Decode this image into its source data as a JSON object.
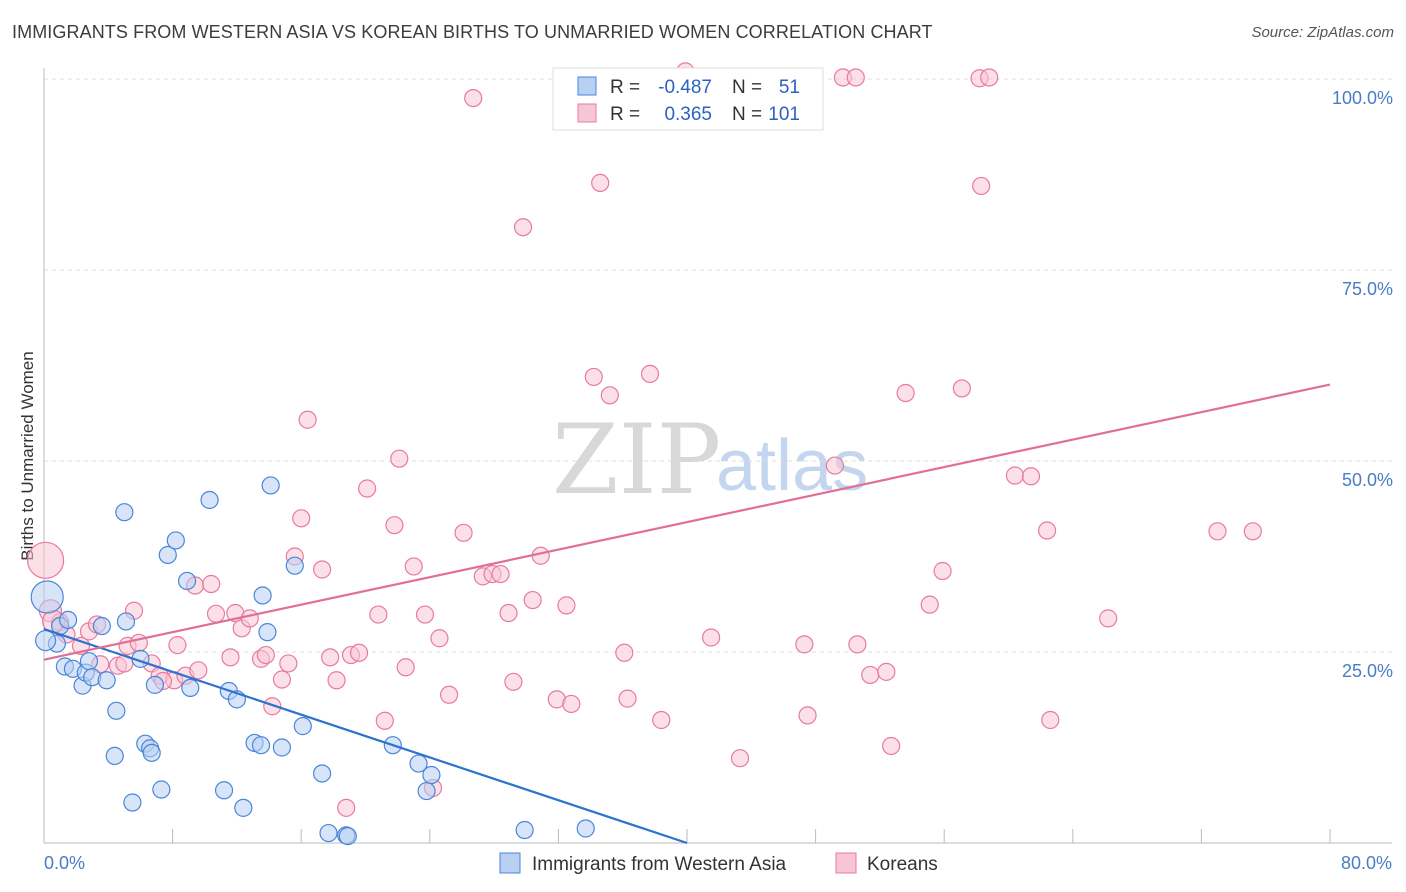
{
  "header": {
    "title": "IMMIGRANTS FROM WESTERN ASIA VS KOREAN BIRTHS TO UNMARRIED WOMEN CORRELATION CHART",
    "source": "Source: ZipAtlas.com"
  },
  "watermark": {
    "zip": "ZIP",
    "atlas": "atlas"
  },
  "colors": {
    "blue": "#4a86d8",
    "blue_fill": "#b8d0f2",
    "blue_line": "#2f72d0",
    "pink": "#e87aa0",
    "pink_fill": "#f7c6d6",
    "pink_line": "#e06f96",
    "grid": "#dddddd",
    "tick_text": "#4a7cc6"
  },
  "legend": {
    "rows": [
      {
        "r_label": "R =",
        "r_value": "-0.487",
        "n_label": "N =",
        "n_value": "51"
      },
      {
        "r_label": "R =",
        "r_value": "0.365",
        "n_label": "N =",
        "n_value": "101"
      }
    ]
  },
  "chart_data": {
    "type": "scatter",
    "title": "IMMIGRANTS FROM WESTERN ASIA VS KOREAN BIRTHS TO UNMARRIED WOMEN CORRELATION CHART",
    "xlabel": "",
    "ylabel": "Births to Unmarried Women",
    "xlim": [
      0,
      80
    ],
    "ylim": [
      0,
      100
    ],
    "x_tick_labels": [
      "0.0%",
      "80.0%"
    ],
    "y_tick_labels": [
      "25.0%",
      "50.0%",
      "75.0%",
      "100.0%"
    ],
    "y_tick_values": [
      25,
      50,
      75,
      100
    ],
    "grid": true,
    "legend_labels": [
      "Immigrants from Western Asia",
      "Koreans"
    ],
    "series": [
      {
        "name": "Immigrants from Western Asia",
        "r": -0.487,
        "n": 51,
        "trend": {
          "x1": 0,
          "y1": 28,
          "x2": 40,
          "y2": 0
        },
        "points": [
          [
            0.2,
            32.2
          ],
          [
            0.8,
            26.1
          ],
          [
            1.0,
            28.4
          ],
          [
            1.5,
            29.2
          ],
          [
            1.3,
            23.1
          ],
          [
            1.8,
            22.8
          ],
          [
            2.4,
            20.6
          ],
          [
            2.6,
            22.3
          ],
          [
            2.8,
            23.8
          ],
          [
            3.0,
            21.7
          ],
          [
            3.6,
            28.4
          ],
          [
            3.9,
            21.3
          ],
          [
            4.5,
            17.3
          ],
          [
            4.4,
            11.4
          ],
          [
            5.0,
            43.3
          ],
          [
            5.1,
            29.0
          ],
          [
            5.5,
            5.3
          ],
          [
            6.0,
            24.1
          ],
          [
            6.3,
            13.0
          ],
          [
            6.6,
            12.4
          ],
          [
            6.7,
            11.8
          ],
          [
            6.9,
            20.7
          ],
          [
            7.3,
            7.0
          ],
          [
            7.7,
            37.7
          ],
          [
            8.2,
            39.6
          ],
          [
            8.9,
            34.3
          ],
          [
            9.1,
            20.3
          ],
          [
            10.3,
            44.9
          ],
          [
            11.2,
            6.9
          ],
          [
            11.5,
            19.9
          ],
          [
            12.0,
            18.8
          ],
          [
            12.4,
            4.6
          ],
          [
            13.1,
            13.1
          ],
          [
            13.5,
            12.8
          ],
          [
            13.6,
            32.4
          ],
          [
            13.9,
            27.6
          ],
          [
            14.1,
            46.8
          ],
          [
            14.8,
            12.5
          ],
          [
            15.6,
            36.3
          ],
          [
            16.1,
            15.3
          ],
          [
            17.3,
            9.1
          ],
          [
            17.7,
            1.3
          ],
          [
            18.8,
            1.0
          ],
          [
            18.9,
            0.9
          ],
          [
            21.7,
            12.8
          ],
          [
            23.3,
            10.4
          ],
          [
            23.8,
            6.8
          ],
          [
            24.1,
            8.9
          ],
          [
            29.9,
            1.7
          ],
          [
            33.7,
            1.9
          ],
          [
            0.1,
            26.5
          ]
        ]
      },
      {
        "name": "Koreans",
        "r": 0.365,
        "n": 101,
        "trend": {
          "x1": 0,
          "y1": 24,
          "x2": 80,
          "y2": 60
        },
        "points": [
          [
            0.1,
            37.0
          ],
          [
            0.4,
            30.4
          ],
          [
            1.0,
            28.9
          ],
          [
            1.4,
            27.3
          ],
          [
            2.3,
            25.8
          ],
          [
            2.8,
            27.7
          ],
          [
            3.5,
            23.4
          ],
          [
            4.6,
            23.2
          ],
          [
            5.0,
            23.5
          ],
          [
            5.2,
            25.8
          ],
          [
            5.6,
            30.4
          ],
          [
            5.9,
            26.2
          ],
          [
            6.7,
            23.5
          ],
          [
            7.2,
            21.9
          ],
          [
            8.1,
            21.3
          ],
          [
            8.3,
            25.9
          ],
          [
            8.8,
            21.9
          ],
          [
            9.4,
            33.7
          ],
          [
            9.6,
            22.6
          ],
          [
            10.4,
            33.9
          ],
          [
            10.7,
            30.0
          ],
          [
            11.6,
            24.3
          ],
          [
            11.9,
            30.1
          ],
          [
            12.3,
            28.1
          ],
          [
            12.8,
            29.4
          ],
          [
            13.5,
            24.1
          ],
          [
            13.8,
            24.6
          ],
          [
            14.2,
            17.9
          ],
          [
            14.8,
            21.4
          ],
          [
            15.2,
            23.5
          ],
          [
            15.6,
            37.5
          ],
          [
            16.0,
            42.5
          ],
          [
            16.4,
            55.4
          ],
          [
            17.3,
            35.8
          ],
          [
            17.8,
            24.3
          ],
          [
            18.2,
            21.3
          ],
          [
            18.8,
            4.6
          ],
          [
            19.1,
            24.6
          ],
          [
            19.6,
            24.9
          ],
          [
            20.1,
            46.4
          ],
          [
            20.8,
            29.9
          ],
          [
            21.2,
            16.0
          ],
          [
            21.8,
            41.6
          ],
          [
            22.1,
            50.3
          ],
          [
            22.5,
            23.0
          ],
          [
            23.0,
            36.2
          ],
          [
            23.7,
            29.9
          ],
          [
            24.2,
            7.2
          ],
          [
            24.6,
            26.8
          ],
          [
            25.2,
            19.4
          ],
          [
            26.1,
            40.6
          ],
          [
            26.7,
            97.5
          ],
          [
            27.3,
            34.9
          ],
          [
            27.9,
            35.2
          ],
          [
            28.4,
            35.2
          ],
          [
            28.9,
            30.1
          ],
          [
            29.2,
            21.1
          ],
          [
            29.8,
            80.6
          ],
          [
            30.4,
            31.8
          ],
          [
            30.9,
            37.6
          ],
          [
            31.9,
            18.8
          ],
          [
            32.5,
            31.1
          ],
          [
            32.8,
            18.2
          ],
          [
            34.2,
            61.0
          ],
          [
            34.6,
            86.4
          ],
          [
            35.2,
            58.6
          ],
          [
            36.1,
            24.9
          ],
          [
            36.3,
            18.9
          ],
          [
            37.7,
            61.4
          ],
          [
            38.4,
            16.1
          ],
          [
            39.9,
            101.0
          ],
          [
            40.1,
            100.3
          ],
          [
            41.5,
            26.9
          ],
          [
            43.3,
            11.1
          ],
          [
            47.3,
            26.0
          ],
          [
            47.5,
            16.7
          ],
          [
            49.2,
            49.4
          ],
          [
            49.7,
            100.2
          ],
          [
            50.5,
            100.2
          ],
          [
            50.6,
            26.0
          ],
          [
            51.4,
            22.0
          ],
          [
            52.4,
            22.4
          ],
          [
            52.7,
            12.7
          ],
          [
            53.6,
            58.9
          ],
          [
            55.1,
            31.2
          ],
          [
            55.9,
            35.6
          ],
          [
            57.1,
            59.5
          ],
          [
            58.3,
            86.0
          ],
          [
            58.2,
            100.1
          ],
          [
            58.8,
            100.2
          ],
          [
            60.4,
            48.1
          ],
          [
            61.4,
            48.0
          ],
          [
            62.4,
            40.9
          ],
          [
            62.6,
            16.1
          ],
          [
            66.2,
            29.4
          ],
          [
            73.0,
            40.8
          ],
          [
            75.2,
            40.8
          ],
          [
            7.4,
            21.2
          ],
          [
            0.6,
            29.0
          ],
          [
            3.3,
            28.6
          ],
          [
            44.0,
            100.0
          ]
        ]
      }
    ]
  }
}
